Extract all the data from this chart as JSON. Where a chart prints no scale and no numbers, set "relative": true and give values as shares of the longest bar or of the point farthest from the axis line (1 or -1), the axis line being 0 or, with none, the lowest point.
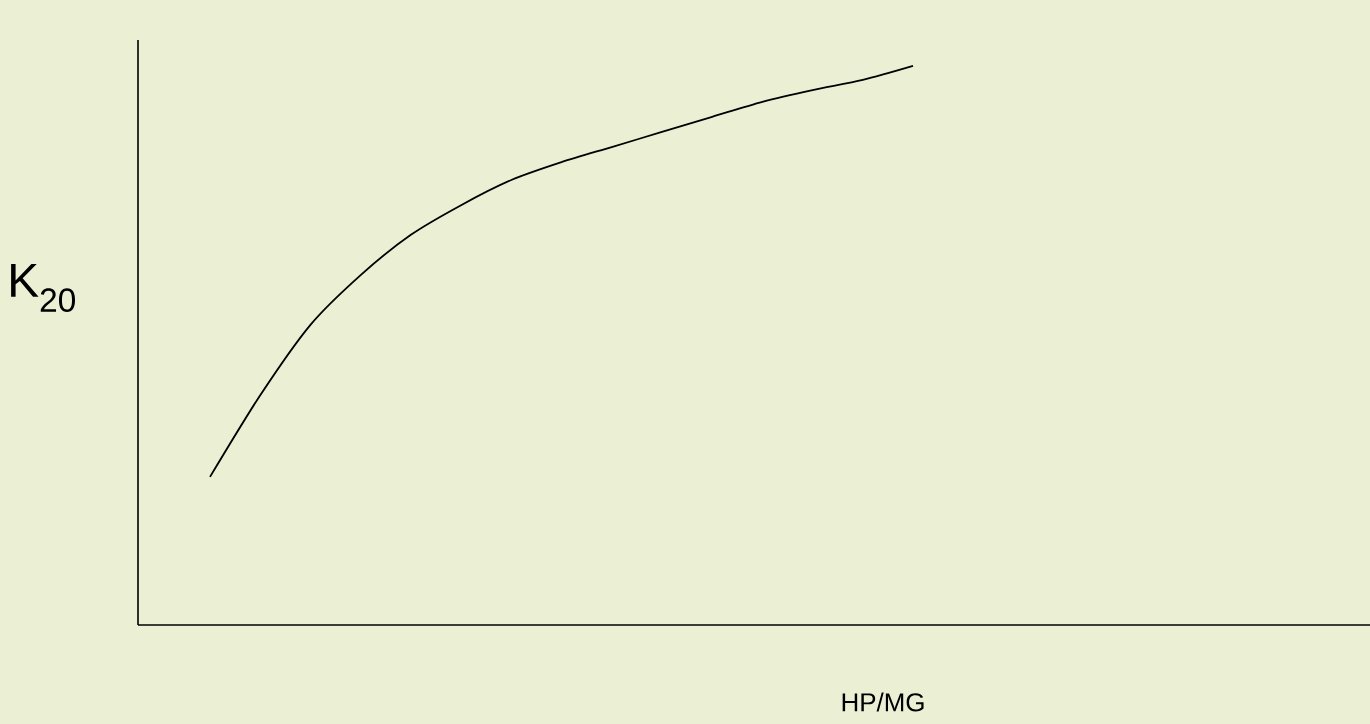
{
  "chart_data": {
    "type": "line",
    "relative": true,
    "xlabel": "HP/MG",
    "ylabel": "K$_{20}$",
    "categories": [
      null,
      null,
      null,
      null,
      null,
      null,
      null,
      null,
      null,
      null,
      null,
      null,
      null,
      null,
      null
    ],
    "values": [
      0.265,
      0.411,
      0.537,
      0.626,
      0.698,
      0.751,
      0.796,
      0.828,
      0.855,
      0.882,
      0.909,
      0.936,
      0.957,
      0.975,
      1
    ],
    "color": "#000000"
  }
}
